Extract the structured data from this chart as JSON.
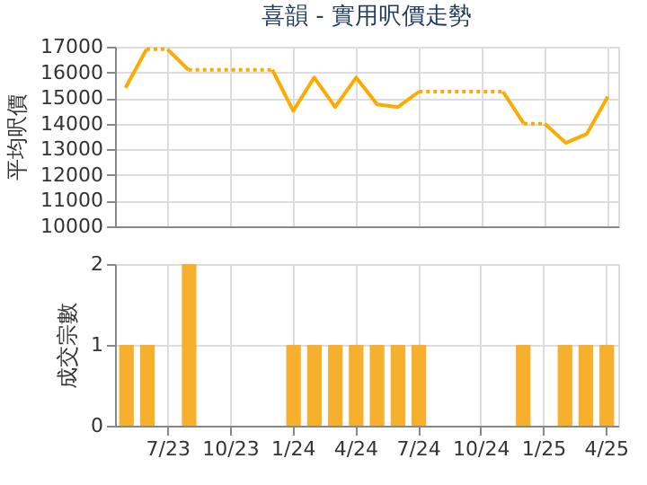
{
  "chart_data": [
    {
      "type": "line",
      "title": "喜韻 - 實用呎價走勢",
      "ylabel": "平均呎價",
      "categories": [
        null,
        null,
        null,
        null,
        null,
        null,
        null,
        null,
        null,
        null,
        null,
        null,
        null,
        null,
        null,
        null,
        null,
        null,
        null,
        null,
        null,
        null,
        null,
        null
      ],
      "series": [
        {
          "color": "#ffaa00",
          "line_style": "solid",
          "values": [
            15400,
            16900,
            null,
            null,
            null,
            null,
            null,
            null,
            null,
            null,
            null,
            null,
            null,
            null,
            null,
            null,
            null,
            null,
            null,
            null,
            null,
            null,
            null,
            null
          ]
        },
        {
          "color": "#ffaa00",
          "line_style": "dotted",
          "values": [
            null,
            16900,
            16900,
            null,
            null,
            null,
            null,
            null,
            null,
            null,
            null,
            null,
            null,
            null,
            null,
            null,
            null,
            null,
            null,
            null,
            null,
            null,
            null,
            null
          ]
        },
        {
          "color": "#ffaa00",
          "line_style": "solid",
          "values": [
            null,
            null,
            16900,
            16100,
            null,
            null,
            null,
            null,
            null,
            null,
            null,
            null,
            null,
            null,
            null,
            null,
            null,
            null,
            null,
            null,
            null,
            null,
            null,
            null
          ]
        },
        {
          "color": "#ffaa00",
          "line_style": "dotted",
          "values": [
            null,
            null,
            null,
            16100,
            16100,
            16100,
            16100,
            16100,
            null,
            null,
            null,
            null,
            null,
            null,
            null,
            null,
            null,
            null,
            null,
            null,
            null,
            null,
            null,
            null
          ]
        },
        {
          "color": "#ffaa00",
          "line_style": "solid",
          "values": [
            null,
            null,
            null,
            null,
            null,
            null,
            null,
            16100,
            14500,
            15800,
            14650,
            15800,
            14750,
            14650,
            15250,
            null,
            null,
            null,
            null,
            null,
            null,
            null,
            null,
            null
          ]
        },
        {
          "color": "#ffaa00",
          "line_style": "dotted",
          "values": [
            null,
            null,
            null,
            null,
            null,
            null,
            null,
            null,
            null,
            null,
            null,
            null,
            null,
            null,
            15250,
            15250,
            15250,
            15250,
            15250,
            null,
            null,
            null,
            null,
            null
          ]
        },
        {
          "color": "#ffaa00",
          "line_style": "solid",
          "values": [
            null,
            null,
            null,
            null,
            null,
            null,
            null,
            null,
            null,
            null,
            null,
            null,
            null,
            null,
            null,
            null,
            null,
            null,
            15250,
            14000,
            null,
            null,
            null,
            null
          ]
        },
        {
          "color": "#ffaa00",
          "line_style": "dotted",
          "values": [
            null,
            null,
            null,
            null,
            null,
            null,
            null,
            null,
            null,
            null,
            null,
            null,
            null,
            null,
            null,
            null,
            null,
            null,
            null,
            14000,
            14000,
            null,
            null,
            null
          ]
        },
        {
          "color": "#ffaa00",
          "line_style": "solid",
          "values": [
            null,
            null,
            null,
            null,
            null,
            null,
            null,
            null,
            null,
            null,
            null,
            null,
            null,
            null,
            null,
            null,
            null,
            null,
            null,
            null,
            14000,
            13250,
            13600,
            15050
          ]
        }
      ],
      "ylim": [
        10000,
        17000
      ],
      "yticks": [
        10000,
        11000,
        12000,
        13000,
        14000,
        15000,
        16000,
        17000
      ],
      "grid": true,
      "tick_labels": "y"
    },
    {
      "type": "bar",
      "ylabel": "成交宗數",
      "categories": [
        null,
        null,
        "7/23",
        null,
        null,
        "10/23",
        null,
        null,
        "1/24",
        null,
        null,
        "4/24",
        null,
        null,
        "7/24",
        null,
        null,
        "10/24",
        null,
        null,
        "1/25",
        null,
        null,
        "4/25"
      ],
      "values": [
        1,
        1,
        0,
        2,
        0,
        0,
        0,
        0,
        1,
        1,
        1,
        1,
        1,
        1,
        1,
        0,
        0,
        0,
        0,
        1,
        0,
        1,
        1,
        1
      ],
      "color": "#f7b02e",
      "ylim": [
        0,
        2
      ],
      "yticks": [
        0,
        1,
        2
      ],
      "grid": true
    }
  ]
}
